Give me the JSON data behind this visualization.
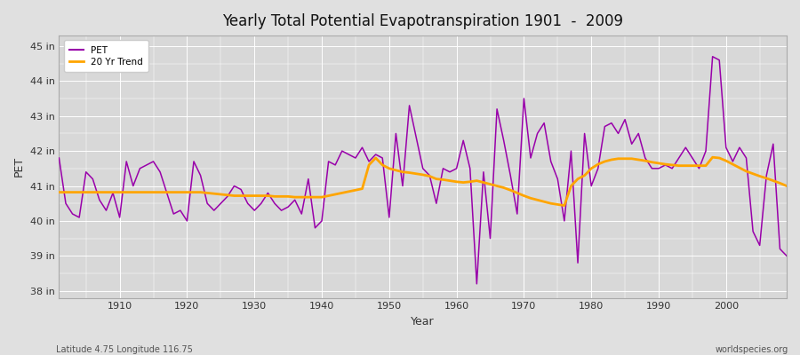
{
  "title": "Yearly Total Potential Evapotranspiration 1901  -  2009",
  "xlabel": "Year",
  "ylabel": "PET",
  "subtitle_left": "Latitude 4.75 Longitude 116.75",
  "subtitle_right": "worldspecies.org",
  "pet_color": "#9900AA",
  "trend_color": "#FFA500",
  "fig_bg_color": "#E0E0E0",
  "plot_bg_color": "#D8D8D8",
  "ylim": [
    37.8,
    45.3
  ],
  "yticks": [
    38,
    39,
    40,
    41,
    42,
    43,
    44,
    45
  ],
  "ytick_labels": [
    "38 in",
    "39 in",
    "40 in",
    "41 in",
    "42 in",
    "43 in",
    "44 in",
    "45 in"
  ],
  "xticks": [
    1910,
    1920,
    1930,
    1940,
    1950,
    1960,
    1970,
    1980,
    1990,
    2000
  ],
  "xlim": [
    1901,
    2009
  ],
  "years": [
    1901,
    1902,
    1903,
    1904,
    1905,
    1906,
    1907,
    1908,
    1909,
    1910,
    1911,
    1912,
    1913,
    1914,
    1915,
    1916,
    1917,
    1918,
    1919,
    1920,
    1921,
    1922,
    1923,
    1924,
    1925,
    1926,
    1927,
    1928,
    1929,
    1930,
    1931,
    1932,
    1933,
    1934,
    1935,
    1936,
    1937,
    1938,
    1939,
    1940,
    1941,
    1942,
    1943,
    1944,
    1945,
    1946,
    1947,
    1948,
    1949,
    1950,
    1951,
    1952,
    1953,
    1954,
    1955,
    1956,
    1957,
    1958,
    1959,
    1960,
    1961,
    1962,
    1963,
    1964,
    1965,
    1966,
    1967,
    1968,
    1969,
    1970,
    1971,
    1972,
    1973,
    1974,
    1975,
    1976,
    1977,
    1978,
    1979,
    1980,
    1981,
    1982,
    1983,
    1984,
    1985,
    1986,
    1987,
    1988,
    1989,
    1990,
    1991,
    1992,
    1993,
    1994,
    1995,
    1996,
    1997,
    1998,
    1999,
    2000,
    2001,
    2002,
    2003,
    2004,
    2005,
    2006,
    2007,
    2008,
    2009
  ],
  "pet_values": [
    41.8,
    40.5,
    40.2,
    40.1,
    41.4,
    41.2,
    40.6,
    40.3,
    40.8,
    40.1,
    41.7,
    41.0,
    41.5,
    41.6,
    41.7,
    41.4,
    40.8,
    40.2,
    40.3,
    40.0,
    41.7,
    41.3,
    40.5,
    40.3,
    40.5,
    40.7,
    41.0,
    40.9,
    40.5,
    40.3,
    40.5,
    40.8,
    40.5,
    40.3,
    40.4,
    40.6,
    40.2,
    41.2,
    39.8,
    40.0,
    41.7,
    41.6,
    42.0,
    41.9,
    41.8,
    42.1,
    41.7,
    41.9,
    41.8,
    40.1,
    42.5,
    41.0,
    43.3,
    42.4,
    41.5,
    41.3,
    40.5,
    41.5,
    41.4,
    41.5,
    42.3,
    41.5,
    38.2,
    41.4,
    39.5,
    43.2,
    42.3,
    41.3,
    40.2,
    43.5,
    41.8,
    42.5,
    42.8,
    41.7,
    41.2,
    40.0,
    42.0,
    38.8,
    42.5,
    41.0,
    41.5,
    42.7,
    42.8,
    42.5,
    42.9,
    42.2,
    42.5,
    41.8,
    41.5,
    41.5,
    41.6,
    41.5,
    41.8,
    42.1,
    41.8,
    41.5,
    42.0,
    44.7,
    44.6,
    42.1,
    41.7,
    42.1,
    41.8,
    39.7,
    39.3,
    41.3,
    42.2,
    39.2,
    39.0
  ],
  "trend_values": [
    40.82,
    40.82,
    40.82,
    40.82,
    40.82,
    40.82,
    40.82,
    40.82,
    40.82,
    40.82,
    40.82,
    40.82,
    40.82,
    40.82,
    40.82,
    40.82,
    40.82,
    40.82,
    40.82,
    40.82,
    40.82,
    40.82,
    40.8,
    40.78,
    40.76,
    40.74,
    40.72,
    40.72,
    40.72,
    40.72,
    40.72,
    40.72,
    40.7,
    40.7,
    40.7,
    40.68,
    40.68,
    40.68,
    40.68,
    40.68,
    40.72,
    40.76,
    40.8,
    40.84,
    40.88,
    40.92,
    41.6,
    41.8,
    41.6,
    41.5,
    41.45,
    41.4,
    41.38,
    41.35,
    41.32,
    41.28,
    41.2,
    41.18,
    41.15,
    41.12,
    41.1,
    41.12,
    41.15,
    41.1,
    41.05,
    41.0,
    40.95,
    40.88,
    40.8,
    40.72,
    40.65,
    40.6,
    40.55,
    40.5,
    40.47,
    40.44,
    41.0,
    41.2,
    41.3,
    41.5,
    41.62,
    41.7,
    41.75,
    41.78,
    41.78,
    41.78,
    41.75,
    41.72,
    41.68,
    41.65,
    41.62,
    41.6,
    41.58,
    41.58,
    41.58,
    41.58,
    41.58,
    41.82,
    41.8,
    41.72,
    41.62,
    41.52,
    41.42,
    41.35,
    41.28,
    41.22,
    41.15,
    41.08,
    41.0
  ]
}
